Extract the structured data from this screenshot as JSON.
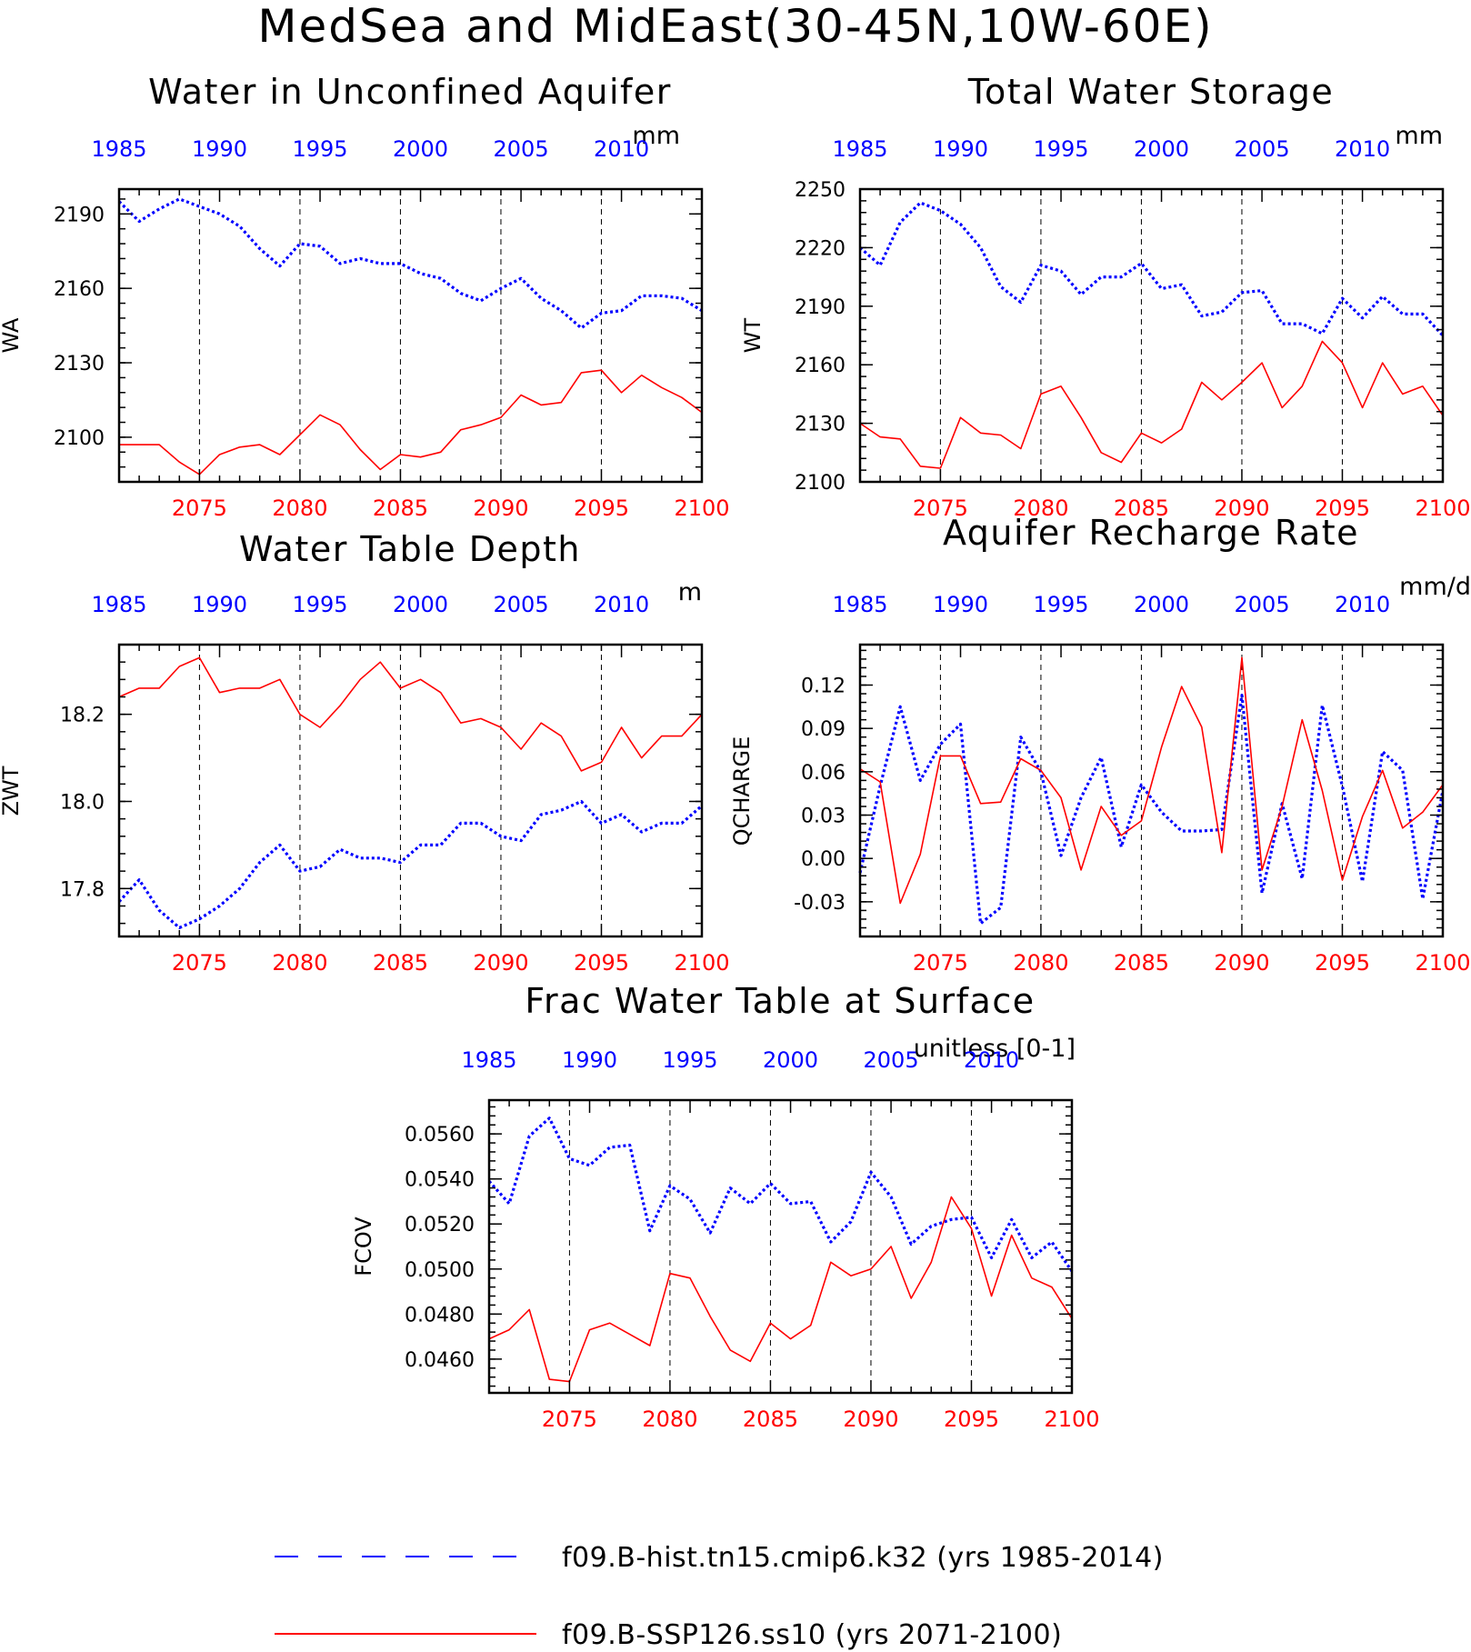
{
  "figure": {
    "title": "MedSea and MidEast(30-45N,10W-60E)"
  },
  "colors": {
    "hist": "#0000ff",
    "ssp": "#ff0000",
    "axis": "#000000",
    "grid": "#000000"
  },
  "legend": {
    "items": [
      {
        "label": "f09.B-hist.tn15.cmip6.k32 (yrs 1985-2014)",
        "color": "#0000ff",
        "style": "dashed"
      },
      {
        "label": "f09.B-SSP126.ss10 (yrs 2071-2100)",
        "color": "#ff0000",
        "style": "solid"
      }
    ]
  },
  "chart_data": [
    {
      "type": "line",
      "title": "Water in Unconfined Aquifer",
      "units": "mm",
      "ylabel": "WA",
      "ylim": [
        2082,
        2200
      ],
      "yticks": [
        2100,
        2130,
        2160,
        2190
      ],
      "ytick_labels": [
        "2100",
        "2130",
        "2160",
        "2190"
      ],
      "x_bottom": {
        "range": [
          2071,
          2100
        ],
        "ticks": [
          2075,
          2080,
          2085,
          2090,
          2095,
          2100
        ]
      },
      "x_top": {
        "range": [
          1985,
          2014
        ],
        "ticks": [
          1985,
          1990,
          1995,
          2000,
          2005,
          2010
        ]
      },
      "vgrid": [
        2075,
        2080,
        2085,
        2090,
        2095
      ],
      "series": [
        {
          "name": "f09.B-hist.tn15.cmip6.k32 (yrs 1985-2014)",
          "key": "hist",
          "style": "dotted",
          "values": [
            2195,
            2187,
            2192,
            2196,
            2193,
            2190,
            2185,
            2176,
            2169,
            2178,
            2177,
            2170,
            2172,
            2170,
            2170,
            2166,
            2164,
            2158,
            2155,
            2160,
            2164,
            2156,
            2151,
            2144,
            2150,
            2151,
            2157,
            2157,
            2156,
            2151
          ]
        },
        {
          "name": "f09.B-SSP126.ss10 (yrs 2071-2100)",
          "key": "ssp",
          "style": "solid",
          "values": [
            2097,
            2097,
            2097,
            2090,
            2085,
            2093,
            2096,
            2097,
            2093,
            2101,
            2109,
            2105,
            2095,
            2087,
            2093,
            2092,
            2094,
            2103,
            2105,
            2108,
            2117,
            2113,
            2114,
            2126,
            2127,
            2118,
            2125,
            2120,
            2116,
            2110
          ]
        }
      ]
    },
    {
      "type": "line",
      "title": "Total Water Storage",
      "units": "mm",
      "ylabel": "WT",
      "ylim": [
        2100,
        2250
      ],
      "yticks": [
        2100,
        2130,
        2160,
        2190,
        2220,
        2250
      ],
      "ytick_labels": [
        "2100",
        "2130",
        "2160",
        "2190",
        "2220",
        "2250"
      ],
      "x_bottom": {
        "range": [
          2071,
          2100
        ],
        "ticks": [
          2075,
          2080,
          2085,
          2090,
          2095,
          2100
        ]
      },
      "x_top": {
        "range": [
          1985,
          2014
        ],
        "ticks": [
          1985,
          1990,
          1995,
          2000,
          2005,
          2010
        ]
      },
      "vgrid": [
        2075,
        2080,
        2085,
        2090,
        2095
      ],
      "series": [
        {
          "name": "f09.B-hist.tn15.cmip6.k32 (yrs 1985-2014)",
          "key": "hist",
          "style": "dotted",
          "values": [
            2220,
            2211,
            2233,
            2243,
            2239,
            2232,
            2220,
            2200,
            2192,
            2211,
            2208,
            2196,
            2205,
            2205,
            2212,
            2199,
            2201,
            2185,
            2187,
            2197,
            2198,
            2181,
            2181,
            2176,
            2194,
            2184,
            2195,
            2186,
            2186,
            2175
          ]
        },
        {
          "name": "f09.B-SSP126.ss10 (yrs 2071-2100)",
          "key": "ssp",
          "style": "solid",
          "values": [
            2130,
            2123,
            2122,
            2108,
            2107,
            2133,
            2125,
            2124,
            2117,
            2145,
            2149,
            2133,
            2115,
            2110,
            2125,
            2120,
            2127,
            2151,
            2142,
            2151,
            2161,
            2138,
            2149,
            2172,
            2161,
            2138,
            2161,
            2145,
            2149,
            2134
          ]
        }
      ]
    },
    {
      "type": "line",
      "title": "Water Table Depth",
      "units": "m",
      "ylabel": "ZWT",
      "ylim": [
        17.69,
        18.36
      ],
      "yticks": [
        17.8,
        18.0,
        18.2
      ],
      "ytick_labels": [
        "17.8",
        "18.0",
        "18.2"
      ],
      "x_bottom": {
        "range": [
          2071,
          2100
        ],
        "ticks": [
          2075,
          2080,
          2085,
          2090,
          2095,
          2100
        ]
      },
      "x_top": {
        "range": [
          1985,
          2014
        ],
        "ticks": [
          1985,
          1990,
          1995,
          2000,
          2005,
          2010
        ]
      },
      "vgrid": [
        2075,
        2080,
        2085,
        2090,
        2095
      ],
      "series": [
        {
          "name": "f09.B-hist.tn15.cmip6.k32 (yrs 1985-2014)",
          "key": "hist",
          "style": "dotted",
          "values": [
            17.77,
            17.82,
            17.75,
            17.71,
            17.73,
            17.76,
            17.8,
            17.86,
            17.9,
            17.84,
            17.85,
            17.89,
            17.87,
            17.87,
            17.86,
            17.9,
            17.9,
            17.95,
            17.95,
            17.92,
            17.91,
            17.97,
            17.98,
            18.0,
            17.95,
            17.97,
            17.93,
            17.95,
            17.95,
            17.99
          ]
        },
        {
          "name": "f09.B-SSP126.ss10 (yrs 2071-2100)",
          "key": "ssp",
          "style": "solid",
          "values": [
            18.24,
            18.26,
            18.26,
            18.31,
            18.33,
            18.25,
            18.26,
            18.26,
            18.28,
            18.2,
            18.17,
            18.22,
            18.28,
            18.32,
            18.26,
            18.28,
            18.25,
            18.18,
            18.19,
            18.17,
            18.12,
            18.18,
            18.15,
            18.07,
            18.09,
            18.17,
            18.1,
            18.15,
            18.15,
            18.2
          ]
        }
      ]
    },
    {
      "type": "line",
      "title": "Aquifer Recharge Rate",
      "units": "mm/d",
      "ylabel": "QCHARGE",
      "ylim": [
        -0.054,
        0.148
      ],
      "yticks": [
        -0.03,
        0.0,
        0.03,
        0.06,
        0.09,
        0.12
      ],
      "ytick_labels": [
        "-0.03",
        "0.00",
        "0.03",
        "0.06",
        "0.09",
        "0.12"
      ],
      "x_bottom": {
        "range": [
          2071,
          2100
        ],
        "ticks": [
          2075,
          2080,
          2085,
          2090,
          2095,
          2100
        ]
      },
      "x_top": {
        "range": [
          1985,
          2014
        ],
        "ticks": [
          1985,
          1990,
          1995,
          2000,
          2005,
          2010
        ]
      },
      "vgrid": [
        2075,
        2080,
        2085,
        2090,
        2095
      ],
      "series": [
        {
          "name": "f09.B-hist.tn15.cmip6.k32 (yrs 1985-2014)",
          "key": "hist",
          "style": "dotted",
          "values": [
            -0.01,
            0.05,
            0.105,
            0.054,
            0.079,
            0.093,
            -0.045,
            -0.034,
            0.084,
            0.06,
            0.002,
            0.042,
            0.07,
            0.008,
            0.051,
            0.032,
            0.019,
            0.019,
            0.02,
            0.113,
            -0.024,
            0.038,
            -0.014,
            0.106,
            0.05,
            -0.016,
            0.074,
            0.061,
            -0.028,
            0.047
          ]
        },
        {
          "name": "f09.B-SSP126.ss10 (yrs 2071-2100)",
          "key": "ssp",
          "style": "solid",
          "values": [
            0.062,
            0.053,
            -0.031,
            0.003,
            0.071,
            0.071,
            0.038,
            0.039,
            0.069,
            0.061,
            0.042,
            -0.008,
            0.036,
            0.016,
            0.026,
            0.077,
            0.119,
            0.091,
            0.004,
            0.139,
            -0.008,
            0.036,
            0.096,
            0.047,
            -0.015,
            0.029,
            0.061,
            0.021,
            0.032,
            0.051
          ]
        }
      ]
    },
    {
      "type": "line",
      "title": "Frac Water Table at Surface",
      "units": "unitless [0-1]",
      "ylabel": "FCOV",
      "ylim": [
        0.0445,
        0.0575
      ],
      "yticks": [
        0.046,
        0.048,
        0.05,
        0.052,
        0.054,
        0.056
      ],
      "ytick_labels": [
        "0.0460",
        "0.0480",
        "0.0500",
        "0.0520",
        "0.0540",
        "0.0560"
      ],
      "x_bottom": {
        "range": [
          2071,
          2100
        ],
        "ticks": [
          2075,
          2080,
          2085,
          2090,
          2095,
          2100
        ]
      },
      "x_top": {
        "range": [
          1985,
          2014
        ],
        "ticks": [
          1985,
          1990,
          1995,
          2000,
          2005,
          2010
        ]
      },
      "vgrid": [
        2075,
        2080,
        2085,
        2090,
        2095
      ],
      "series": [
        {
          "name": "f09.B-hist.tn15.cmip6.k32 (yrs 1985-2014)",
          "key": "hist",
          "style": "dotted",
          "values": [
            0.0539,
            0.0529,
            0.0559,
            0.0567,
            0.0549,
            0.0546,
            0.0554,
            0.0555,
            0.0517,
            0.0537,
            0.0531,
            0.0516,
            0.0536,
            0.0529,
            0.0538,
            0.0529,
            0.053,
            0.0512,
            0.0521,
            0.0543,
            0.0532,
            0.0511,
            0.0519,
            0.0522,
            0.0523,
            0.0505,
            0.0522,
            0.0505,
            0.0512,
            0.0499
          ]
        },
        {
          "name": "f09.B-SSP126.ss10 (yrs 2071-2100)",
          "key": "ssp",
          "style": "solid",
          "values": [
            0.0469,
            0.0473,
            0.0482,
            0.0451,
            0.045,
            0.0473,
            0.0476,
            0.0471,
            0.0466,
            0.0498,
            0.0496,
            0.0479,
            0.0464,
            0.0459,
            0.0476,
            0.0469,
            0.0475,
            0.0503,
            0.0497,
            0.05,
            0.051,
            0.0487,
            0.0503,
            0.0532,
            0.0518,
            0.0488,
            0.0515,
            0.0496,
            0.0492,
            0.0478
          ]
        }
      ]
    }
  ]
}
